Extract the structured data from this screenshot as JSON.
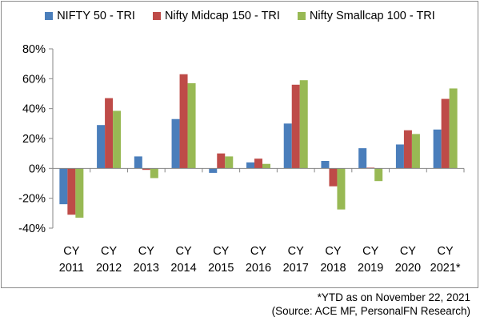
{
  "chart_data": {
    "type": "bar",
    "categories": [
      "CY 2011",
      "CY 2012",
      "CY 2013",
      "CY 2014",
      "CY 2015",
      "CY 2016",
      "CY 2017",
      "CY 2018",
      "CY 2019",
      "CY 2020",
      "CY 2021*"
    ],
    "category_lines": [
      [
        "CY",
        "2011"
      ],
      [
        "CY",
        "2012"
      ],
      [
        "CY",
        "2013"
      ],
      [
        "CY",
        "2014"
      ],
      [
        "CY",
        "2015"
      ],
      [
        "CY",
        "2016"
      ],
      [
        "CY",
        "2017"
      ],
      [
        "CY",
        "2018"
      ],
      [
        "CY",
        "2019"
      ],
      [
        "CY",
        "2020"
      ],
      [
        "CY",
        "2021*"
      ]
    ],
    "series": [
      {
        "name": "NIFTY 50 - TRI",
        "color": "#4a7ebb",
        "values": [
          -24,
          29,
          8,
          33,
          -3,
          4,
          30,
          5,
          13.5,
          16,
          26
        ]
      },
      {
        "name": "Nifty Midcap 150 - TRI",
        "color": "#be4b48",
        "values": [
          -31,
          47,
          -1,
          63,
          10,
          6.5,
          56,
          -12,
          0.5,
          25.5,
          46.5
        ]
      },
      {
        "name": "Nifty Smallcap 100 - TRI",
        "color": "#98b954",
        "values": [
          -33,
          38.5,
          -6.5,
          57,
          8,
          3,
          59,
          -27.5,
          -8.5,
          23,
          53.5
        ]
      }
    ],
    "ylim": [
      -40,
      80
    ],
    "yticks": [
      -40,
      -20,
      0,
      20,
      40,
      60,
      80
    ],
    "ytick_labels": [
      "-40%",
      "-20%",
      "0%",
      "20%",
      "40%",
      "60%",
      "80%"
    ],
    "legend_position": "top",
    "grid": false
  },
  "footnotes": {
    "line1": "*YTD as on November 22, 2021",
    "line2": "(Source: ACE MF, PersonalFN Research)"
  }
}
